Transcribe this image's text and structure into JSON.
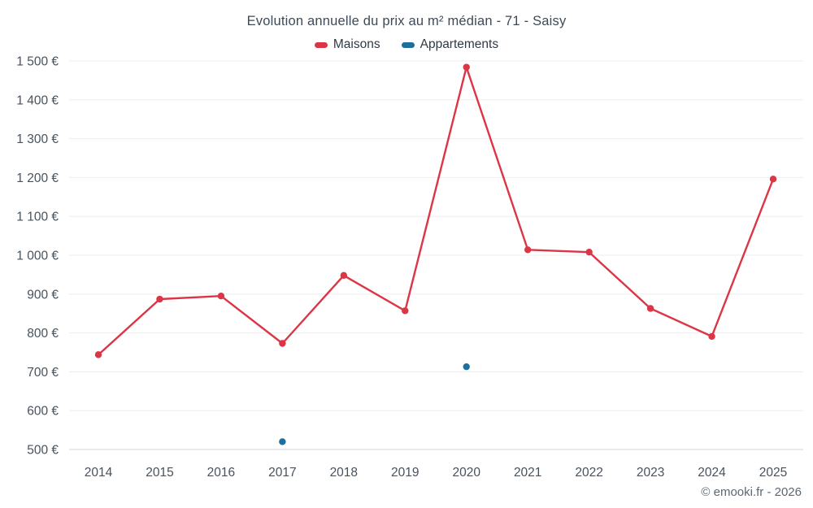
{
  "chart_data": {
    "type": "line",
    "title": "Evolution annuelle du prix au m² médian - 71 - Saisy",
    "categories": [
      "2014",
      "2015",
      "2016",
      "2017",
      "2018",
      "2019",
      "2020",
      "2021",
      "2022",
      "2023",
      "2024",
      "2025"
    ],
    "series": [
      {
        "name": "Maisons",
        "color": "#dc3545",
        "draw_line": true,
        "values": [
          744,
          887,
          895,
          773,
          948,
          857,
          1484,
          1014,
          1008,
          863,
          791,
          1196
        ]
      },
      {
        "name": "Appartements",
        "color": "#1d6f9c",
        "draw_line": false,
        "values": [
          null,
          null,
          null,
          520,
          null,
          null,
          713,
          null,
          null,
          null,
          null,
          null
        ]
      }
    ],
    "ylim": [
      500,
      1500
    ],
    "ytick_step": 100,
    "ytick_labels": [
      "500 €",
      "600 €",
      "700 €",
      "800 €",
      "900 €",
      "1 000 €",
      "1 100 €",
      "1 200 €",
      "1 300 €",
      "1 400 €",
      "1 500 €"
    ],
    "grid": true,
    "legend_position": "top",
    "grid_color": "#ededed",
    "axis_color": "#d2d7db"
  },
  "footer": {
    "copyright": "© emooki.fr - 2026"
  }
}
